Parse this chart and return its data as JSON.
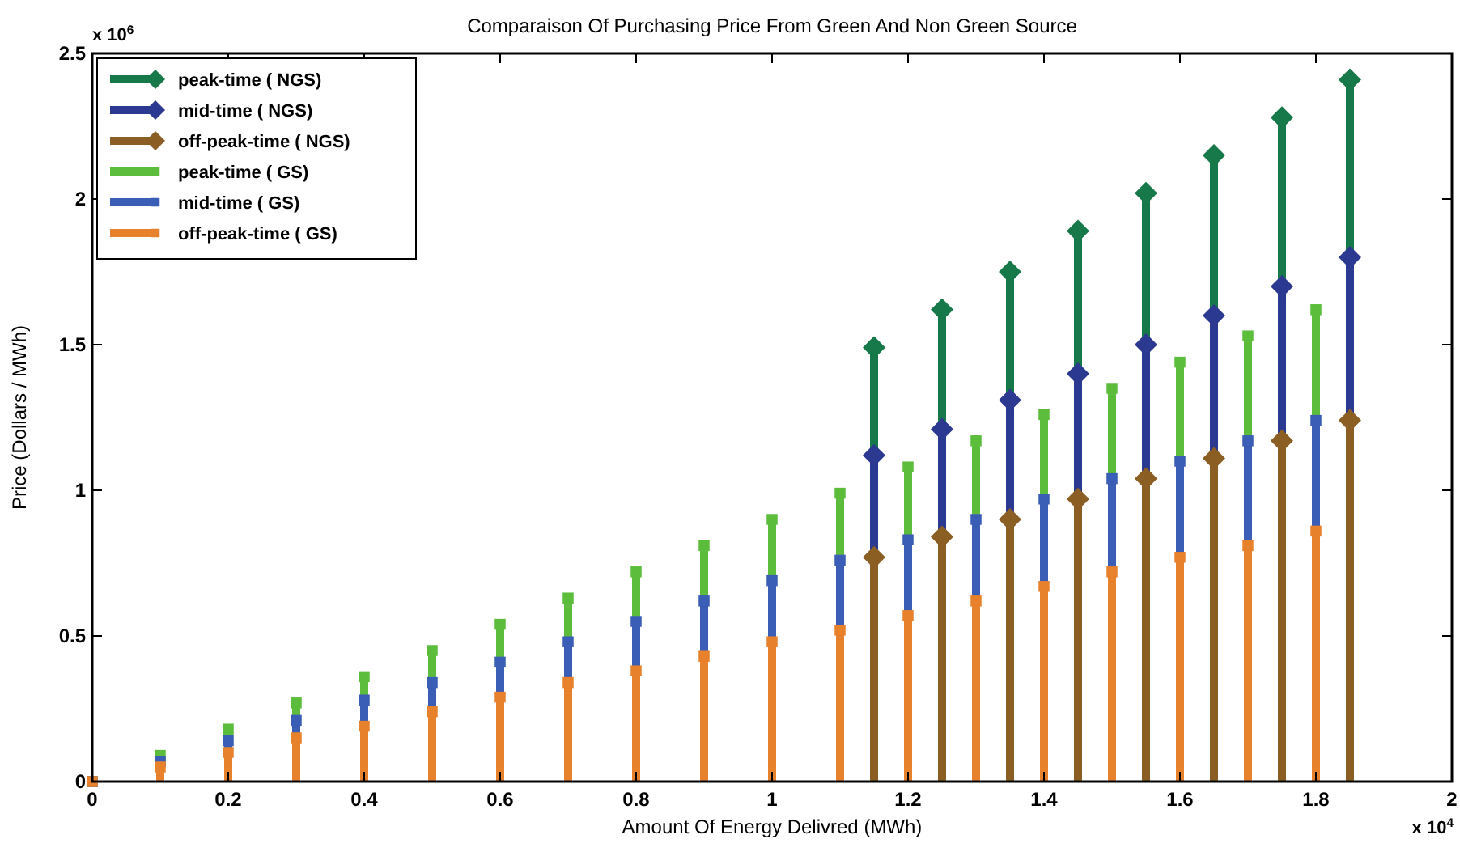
{
  "chart_data": {
    "type": "lollipop",
    "title": "Comparaison Of Purchasing Price From  Green And Non Green Source",
    "xlabel": "Amount Of Energy Delivred (MWh)",
    "ylabel": "Price (Dollars / MWh)",
    "annotations": [
      "x 10$^{6}$",
      "x 10$^{4}$"
    ],
    "xlim": [
      0,
      2
    ],
    "xticks": [
      0,
      0.2,
      0.4,
      0.6,
      0.8,
      1,
      1.2,
      1.4,
      1.6,
      1.8,
      2
    ],
    "ylim": [
      0,
      2.5
    ],
    "yticks": [
      0,
      0.5,
      1,
      1.5,
      2,
      2.5
    ],
    "grid": false,
    "legend": "top left",
    "line_style": "solid",
    "series": [
      {
        "name": "peak-time ( NGS)",
        "color": "#17784a",
        "marker": "diamond",
        "x": [
          1.15,
          1.25,
          1.35,
          1.45,
          1.55,
          1.65,
          1.75,
          1.85
        ],
        "values": [
          1.49,
          1.62,
          1.75,
          1.89,
          2.02,
          2.15,
          2.28,
          2.41
        ]
      },
      {
        "name": "mid-time ( NGS)",
        "color": "#2b3990",
        "marker": "diamond",
        "x": [
          1.15,
          1.25,
          1.35,
          1.45,
          1.55,
          1.65,
          1.75,
          1.85
        ],
        "values": [
          1.12,
          1.21,
          1.31,
          1.4,
          1.5,
          1.6,
          1.7,
          1.8
        ]
      },
      {
        "name": "off-peak-time ( NGS)",
        "color": "#8b5e24",
        "marker": "diamond",
        "x": [
          1.15,
          1.25,
          1.35,
          1.45,
          1.55,
          1.65,
          1.75,
          1.85
        ],
        "values": [
          0.77,
          0.84,
          0.9,
          0.97,
          1.04,
          1.11,
          1.17,
          1.24
        ]
      },
      {
        "name": "peak-time ( GS)",
        "color": "#5cbd3c",
        "marker": "square",
        "x": [
          0,
          0.1,
          0.2,
          0.3,
          0.4,
          0.5,
          0.6,
          0.7,
          0.8,
          0.9,
          1,
          1.1,
          1.2,
          1.3,
          1.4,
          1.5,
          1.6,
          1.7,
          1.8
        ],
        "values": [
          0,
          0.09,
          0.18,
          0.27,
          0.36,
          0.45,
          0.54,
          0.63,
          0.72,
          0.81,
          0.9,
          0.99,
          1.08,
          1.17,
          1.26,
          1.35,
          1.44,
          1.53,
          1.62
        ]
      },
      {
        "name": "mid-time ( GS)",
        "color": "#3a5db5",
        "marker": "square",
        "x": [
          0,
          0.1,
          0.2,
          0.3,
          0.4,
          0.5,
          0.6,
          0.7,
          0.8,
          0.9,
          1,
          1.1,
          1.2,
          1.3,
          1.4,
          1.5,
          1.6,
          1.7,
          1.8
        ],
        "values": [
          0,
          0.07,
          0.14,
          0.21,
          0.28,
          0.34,
          0.41,
          0.48,
          0.55,
          0.62,
          0.69,
          0.76,
          0.83,
          0.9,
          0.97,
          1.04,
          1.1,
          1.17,
          1.24
        ]
      },
      {
        "name": "off-peak-time ( GS)",
        "color": "#e8812c",
        "marker": "square",
        "x": [
          0,
          0.1,
          0.2,
          0.3,
          0.4,
          0.5,
          0.6,
          0.7,
          0.8,
          0.9,
          1,
          1.1,
          1.2,
          1.3,
          1.4,
          1.5,
          1.6,
          1.7,
          1.8
        ],
        "values": [
          0,
          0.05,
          0.1,
          0.15,
          0.19,
          0.24,
          0.29,
          0.34,
          0.38,
          0.43,
          0.48,
          0.52,
          0.57,
          0.62,
          0.67,
          0.72,
          0.77,
          0.81,
          0.86
        ]
      }
    ]
  }
}
